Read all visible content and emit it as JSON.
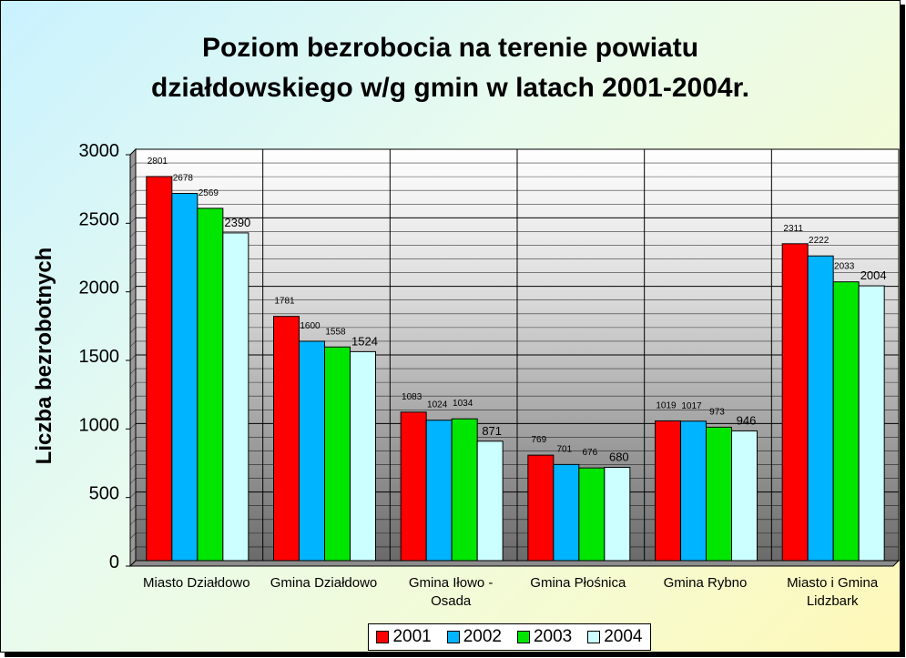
{
  "chart_data": {
    "type": "bar",
    "title_line1": "Poziom bezrobocia na terenie powiatu",
    "title_line2": "działdowskiego w/g gmin w latach 2001-2004r.",
    "ylabel": "Liczba bezrobotnych",
    "ylim": [
      0,
      3000
    ],
    "yticks": [
      0,
      500,
      1000,
      1500,
      2000,
      2500,
      3000
    ],
    "grid": true,
    "legend_position": "bottom",
    "categories": [
      [
        "Miasto Działdowo"
      ],
      [
        "Gmina Działdowo"
      ],
      [
        "Gmina Iłowo -",
        "Osada"
      ],
      [
        "Gmina Płośnica"
      ],
      [
        "Gmina Rybno"
      ],
      [
        "Miasto i Gmina",
        "Lidzbark"
      ]
    ],
    "series": [
      {
        "name": "2001",
        "color": "#ff0000",
        "values": [
          2801,
          1781,
          1083,
          769,
          1019,
          2311
        ]
      },
      {
        "name": "2002",
        "color": "#00b4ff",
        "values": [
          2678,
          1600,
          1024,
          701,
          1017,
          2222
        ]
      },
      {
        "name": "2003",
        "color": "#00e600",
        "values": [
          2569,
          1558,
          1034,
          676,
          973,
          2033
        ]
      },
      {
        "name": "2004",
        "color": "#ccffff",
        "values": [
          2390,
          1524,
          871,
          680,
          946,
          2004
        ]
      }
    ]
  }
}
